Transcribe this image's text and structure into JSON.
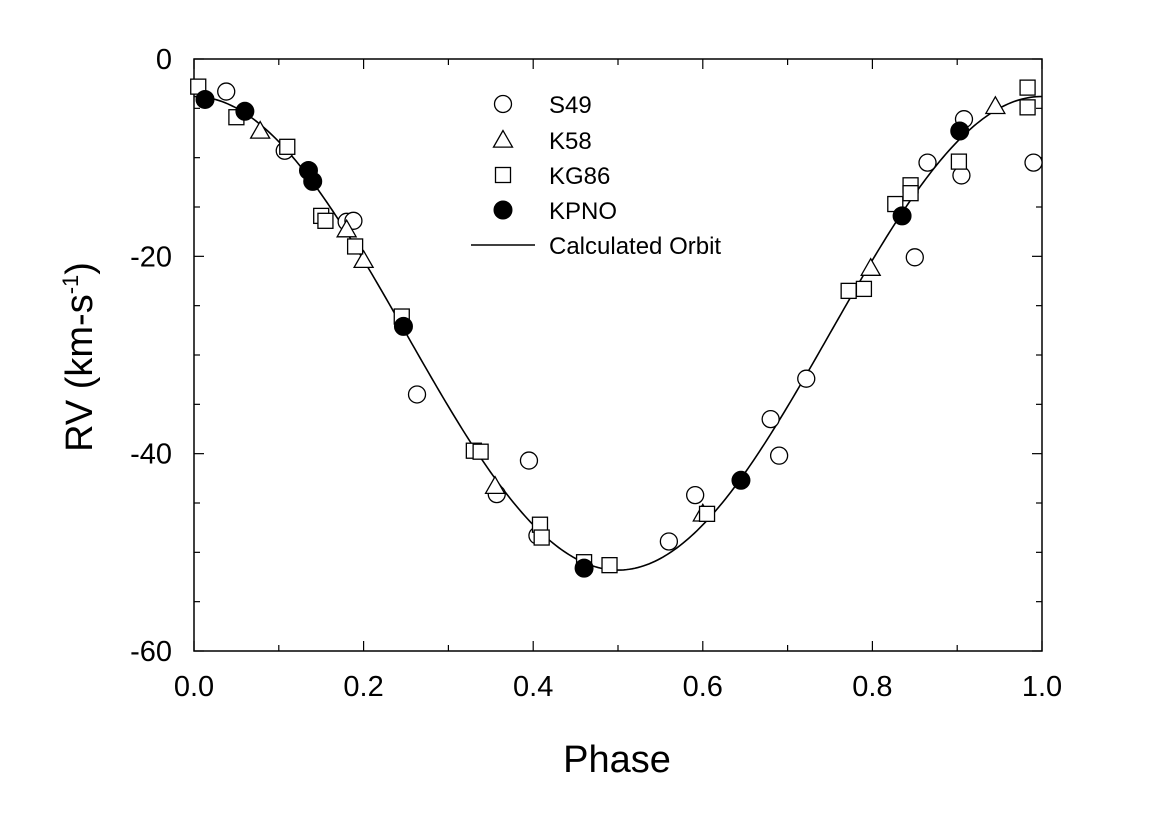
{
  "chart_data": {
    "type": "scatter",
    "title": "",
    "xlabel": "Phase",
    "ylabel": {
      "main": "RV (km-s",
      "sup": "-1",
      "close": ")"
    },
    "xlim": [
      0.0,
      1.0
    ],
    "ylim": [
      -60,
      0
    ],
    "x_ticks": [
      0.0,
      0.2,
      0.4,
      0.6,
      0.8,
      1.0
    ],
    "x_tick_labels": [
      "0.0",
      "0.2",
      "0.4",
      "0.6",
      "0.8",
      "1.0"
    ],
    "y_ticks": [
      0,
      -20,
      -40,
      -60
    ],
    "y_tick_labels": [
      "0",
      "-20",
      "-40",
      "-60"
    ],
    "grid": false,
    "legend_position": "top-center",
    "series": [
      {
        "name": "S49",
        "marker": "open-circle",
        "points": [
          [
            0.038,
            -3.3
          ],
          [
            0.107,
            -9.3
          ],
          [
            0.18,
            -16.5
          ],
          [
            0.188,
            -16.4
          ],
          [
            0.263,
            -34.0
          ],
          [
            0.357,
            -44.1
          ],
          [
            0.395,
            -40.7
          ],
          [
            0.405,
            -48.3
          ],
          [
            0.56,
            -48.9
          ],
          [
            0.591,
            -44.2
          ],
          [
            0.68,
            -36.5
          ],
          [
            0.69,
            -40.2
          ],
          [
            0.722,
            -32.4
          ],
          [
            0.85,
            -20.1
          ],
          [
            0.865,
            -10.5
          ],
          [
            0.905,
            -11.8
          ],
          [
            0.908,
            -6.1
          ],
          [
            0.99,
            -10.5
          ]
        ]
      },
      {
        "name": "K58",
        "marker": "open-triangle",
        "points": [
          [
            0.078,
            -7.3
          ],
          [
            0.18,
            -17.3
          ],
          [
            0.2,
            -20.4
          ],
          [
            0.355,
            -43.3
          ],
          [
            0.6,
            -46.1
          ],
          [
            0.798,
            -21.2
          ],
          [
            0.945,
            -4.8
          ]
        ]
      },
      {
        "name": "KG86",
        "marker": "open-square",
        "points": [
          [
            0.005,
            -2.8
          ],
          [
            0.05,
            -5.9
          ],
          [
            0.11,
            -8.9
          ],
          [
            0.15,
            -15.9
          ],
          [
            0.155,
            -16.4
          ],
          [
            0.19,
            -19.0
          ],
          [
            0.245,
            -26.1
          ],
          [
            0.33,
            -39.7
          ],
          [
            0.338,
            -39.8
          ],
          [
            0.408,
            -47.2
          ],
          [
            0.41,
            -48.5
          ],
          [
            0.46,
            -51.0
          ],
          [
            0.49,
            -51.3
          ],
          [
            0.605,
            -46.1
          ],
          [
            0.772,
            -23.5
          ],
          [
            0.79,
            -23.3
          ],
          [
            0.827,
            -14.7
          ],
          [
            0.845,
            -12.8
          ],
          [
            0.845,
            -13.6
          ],
          [
            0.902,
            -10.4
          ],
          [
            0.983,
            -2.9
          ],
          [
            0.983,
            -4.9
          ]
        ]
      },
      {
        "name": "KPNO",
        "marker": "filled-circle",
        "points": [
          [
            0.013,
            -4.1
          ],
          [
            0.06,
            -5.3
          ],
          [
            0.135,
            -11.3
          ],
          [
            0.14,
            -12.4
          ],
          [
            0.247,
            -27.1
          ],
          [
            0.46,
            -51.6
          ],
          [
            0.645,
            -42.7
          ],
          [
            0.835,
            -15.9
          ],
          [
            0.903,
            -7.3
          ]
        ]
      }
    ],
    "curve": {
      "name": "Calculated Orbit",
      "gamma": -27.8,
      "K": 24.0,
      "description_symbol": "line"
    }
  }
}
